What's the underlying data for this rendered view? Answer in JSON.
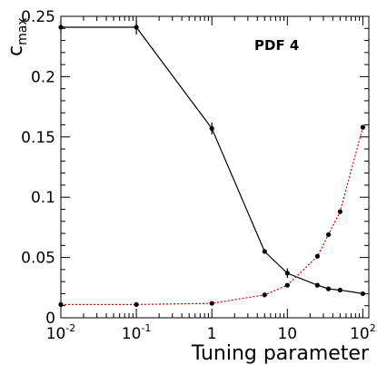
{
  "chart_data": {
    "type": "line",
    "title": "",
    "annotation": "PDF 4",
    "xlabel": "Tuning parameter",
    "ylabel": "c",
    "ylabel_sub": "max",
    "xscale": "log",
    "xlim": [
      0.01,
      120
    ],
    "ylim": [
      0,
      0.25
    ],
    "x_tick_labels": [
      {
        "base": "10",
        "exp": "-2",
        "value": 0.01
      },
      {
        "base": "10",
        "exp": "-1",
        "value": 0.1
      },
      {
        "base": "1",
        "exp": "",
        "value": 1
      },
      {
        "base": "10",
        "exp": "",
        "value": 10
      },
      {
        "base": "10",
        "exp": "2",
        "value": 100
      }
    ],
    "y_ticks": [
      0,
      0.05,
      0.1,
      0.15,
      0.2,
      0.25
    ],
    "y_tick_labels": [
      "0",
      "0.05",
      "0.1",
      "0.15",
      "0.2",
      "0.25"
    ],
    "grid": false,
    "series": [
      {
        "color": "#000000",
        "style": "solid",
        "x": [
          0.01,
          0.1,
          1,
          5,
          10,
          25,
          35,
          50,
          100
        ],
        "y": [
          0.241,
          0.241,
          0.157,
          0.055,
          0.037,
          0.027,
          0.024,
          0.023,
          0.02
        ],
        "err": [
          0.005,
          0.006,
          0.005,
          0.002,
          0.004,
          0.001,
          0.001,
          0.001,
          0.001
        ]
      },
      {
        "color": "#dd0000",
        "style": "dotted",
        "x": [
          0.01,
          0.1,
          1,
          5,
          10,
          25,
          35,
          50,
          100
        ],
        "y": [
          0.011,
          0.011,
          0.012,
          0.019,
          0.027,
          0.051,
          0.069,
          0.088,
          0.158
        ],
        "err": [
          0,
          0,
          0,
          0,
          0,
          0,
          0,
          0,
          0.002
        ]
      }
    ]
  }
}
